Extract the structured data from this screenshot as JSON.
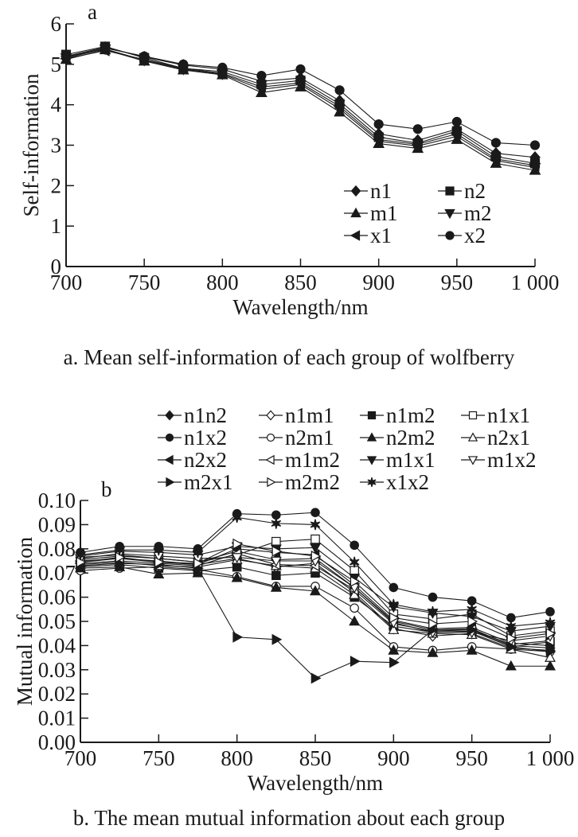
{
  "chart_data": [
    {
      "type": "line",
      "panel_label": "a",
      "caption": "a. Mean self-information of each group of wolfberry",
      "xlabel": "Wavelength/nm",
      "ylabel": "Self-information",
      "xlim": [
        700,
        1000
      ],
      "ylim": [
        0,
        6
      ],
      "xticks": [
        700,
        750,
        800,
        850,
        900,
        950,
        1000
      ],
      "xtick_labels": [
        "700",
        "750",
        "800",
        "850",
        "900",
        "950",
        "1 000"
      ],
      "yticks": [
        0,
        1,
        2,
        3,
        4,
        5,
        6
      ],
      "ytick_labels": [
        "0",
        "1",
        "2",
        "3",
        "4",
        "5",
        "6"
      ],
      "grid": false,
      "legend_position": "bottom-right",
      "x": [
        700,
        725,
        750,
        775,
        800,
        825,
        850,
        875,
        900,
        925,
        950,
        975,
        1000
      ],
      "series": [
        {
          "name": "n1",
          "marker": "diamond-filled",
          "values": [
            5.2,
            5.42,
            5.18,
            4.98,
            4.88,
            4.58,
            4.66,
            4.1,
            3.28,
            3.12,
            3.4,
            2.8,
            2.7
          ]
        },
        {
          "name": "n2",
          "marker": "square-filled",
          "values": [
            5.24,
            5.44,
            5.16,
            4.9,
            4.82,
            4.5,
            4.6,
            4.02,
            3.2,
            3.05,
            3.35,
            2.72,
            2.55
          ]
        },
        {
          "name": "m1",
          "marker": "triangle-up-filled",
          "values": [
            5.12,
            5.36,
            5.08,
            4.86,
            4.74,
            4.3,
            4.44,
            3.82,
            3.04,
            2.92,
            3.14,
            2.55,
            2.38
          ]
        },
        {
          "name": "m2",
          "marker": "triangle-down-filled",
          "values": [
            5.16,
            5.38,
            5.1,
            4.88,
            4.76,
            4.38,
            4.5,
            3.9,
            3.1,
            2.98,
            3.22,
            2.62,
            2.45
          ]
        },
        {
          "name": "x1",
          "marker": "triangle-left-filled",
          "values": [
            5.14,
            5.34,
            5.12,
            4.9,
            4.78,
            4.44,
            4.54,
            3.96,
            3.14,
            3.02,
            3.28,
            2.66,
            2.5
          ]
        },
        {
          "name": "x2",
          "marker": "circle-filled",
          "values": [
            5.18,
            5.4,
            5.2,
            5.0,
            4.92,
            4.72,
            4.88,
            4.36,
            3.52,
            3.4,
            3.58,
            3.06,
            3.0
          ]
        }
      ]
    },
    {
      "type": "line",
      "panel_label": "b",
      "caption": "b. The mean mutual information about each group",
      "xlabel": "Wavelength/nm",
      "ylabel": "Mutual information",
      "xlim": [
        700,
        1000
      ],
      "ylim": [
        0,
        0.1
      ],
      "xticks": [
        700,
        750,
        800,
        850,
        900,
        950,
        1000
      ],
      "xtick_labels": [
        "700",
        "750",
        "800",
        "850",
        "900",
        "950",
        "1 000"
      ],
      "yticks": [
        0,
        0.01,
        0.02,
        0.03,
        0.04,
        0.05,
        0.06,
        0.07,
        0.08,
        0.09,
        0.1
      ],
      "ytick_labels": [
        "0.00",
        "0.01",
        "0.02",
        "0.03",
        "0.04",
        "0.05",
        "0.06",
        "0.07",
        "0.08",
        "0.09",
        "0.10"
      ],
      "grid": false,
      "legend_position": "top (above plot)",
      "x": [
        700,
        725,
        750,
        775,
        800,
        825,
        850,
        875,
        900,
        925,
        950,
        975,
        1000
      ],
      "series": [
        {
          "name": "n1n2",
          "marker": "diamond-filled",
          "values": [
            0.0765,
            0.0775,
            0.076,
            0.0745,
            0.079,
            0.0755,
            0.076,
            0.064,
            0.05,
            0.0465,
            0.047,
            0.04,
            0.039
          ]
        },
        {
          "name": "n1m1",
          "marker": "diamond-open",
          "values": [
            0.0745,
            0.076,
            0.075,
            0.0735,
            0.076,
            0.0725,
            0.074,
            0.062,
            0.047,
            0.044,
            0.045,
            0.039,
            0.038
          ]
        },
        {
          "name": "n1m2",
          "marker": "square-filled",
          "values": [
            0.0725,
            0.0735,
            0.072,
            0.071,
            0.0725,
            0.069,
            0.07,
            0.06,
            0.048,
            0.0455,
            0.046,
            0.0395,
            0.0415
          ]
        },
        {
          "name": "n1x1",
          "marker": "square-open",
          "values": [
            0.0755,
            0.077,
            0.076,
            0.0745,
            0.0775,
            0.083,
            0.084,
            0.071,
            0.053,
            0.051,
            0.053,
            0.044,
            0.046
          ]
        },
        {
          "name": "n1x2",
          "marker": "circle-filled",
          "values": [
            0.0785,
            0.081,
            0.081,
            0.08,
            0.0945,
            0.094,
            0.095,
            0.0815,
            0.064,
            0.06,
            0.0585,
            0.0515,
            0.054
          ]
        },
        {
          "name": "n2m1",
          "marker": "circle-open",
          "values": [
            0.071,
            0.072,
            0.0725,
            0.0715,
            0.0685,
            0.0645,
            0.0645,
            0.0555,
            0.0395,
            0.038,
            0.0395,
            0.0385,
            0.0375
          ]
        },
        {
          "name": "n2m2",
          "marker": "triangle-up-filled",
          "values": [
            0.072,
            0.0725,
            0.0695,
            0.07,
            0.068,
            0.064,
            0.0625,
            0.05,
            0.038,
            0.037,
            0.038,
            0.0315,
            0.0315
          ]
        },
        {
          "name": "n2x1",
          "marker": "triangle-up-open",
          "values": [
            0.0735,
            0.0745,
            0.073,
            0.0725,
            0.0755,
            0.073,
            0.072,
            0.061,
            0.0465,
            0.045,
            0.0445,
            0.0385,
            0.035
          ]
        },
        {
          "name": "n2x2",
          "marker": "triangle-left-filled",
          "values": [
            0.075,
            0.076,
            0.0745,
            0.0735,
            0.08,
            0.0785,
            0.0775,
            0.065,
            0.0505,
            0.047,
            0.0475,
            0.041,
            0.04
          ]
        },
        {
          "name": "m1m2",
          "marker": "triangle-left-open",
          "values": [
            0.074,
            0.075,
            0.074,
            0.073,
            0.078,
            0.0735,
            0.073,
            0.063,
            0.049,
            0.046,
            0.0465,
            0.0405,
            0.042
          ]
        },
        {
          "name": "m1x1",
          "marker": "triangle-down-filled",
          "values": [
            0.077,
            0.079,
            0.0785,
            0.0775,
            0.081,
            0.08,
            0.0805,
            0.068,
            0.056,
            0.0535,
            0.052,
            0.046,
            0.048
          ]
        },
        {
          "name": "m1x2",
          "marker": "triangle-down-open",
          "values": [
            0.076,
            0.078,
            0.077,
            0.076,
            0.0765,
            0.075,
            0.075,
            0.064,
            0.0495,
            0.0455,
            0.0455,
            0.042,
            0.044
          ]
        },
        {
          "name": "m2x1",
          "marker": "triangle-right-filled",
          "values": [
            0.073,
            0.074,
            0.0735,
            0.072,
            0.0435,
            0.0425,
            0.0265,
            0.0335,
            0.033,
            0.0465,
            0.0465,
            0.0395,
            0.0375
          ]
        },
        {
          "name": "m2m2",
          "marker": "triangle-right-open",
          "values": [
            0.0745,
            0.0765,
            0.0745,
            0.074,
            0.082,
            0.079,
            0.077,
            0.0665,
            0.0515,
            0.049,
            0.05,
            0.043,
            0.045
          ]
        },
        {
          "name": "x1x2",
          "marker": "star-filled",
          "values": [
            0.0775,
            0.0795,
            0.0795,
            0.0785,
            0.093,
            0.0905,
            0.09,
            0.0745,
            0.057,
            0.054,
            0.055,
            0.048,
            0.0495
          ]
        }
      ]
    }
  ]
}
